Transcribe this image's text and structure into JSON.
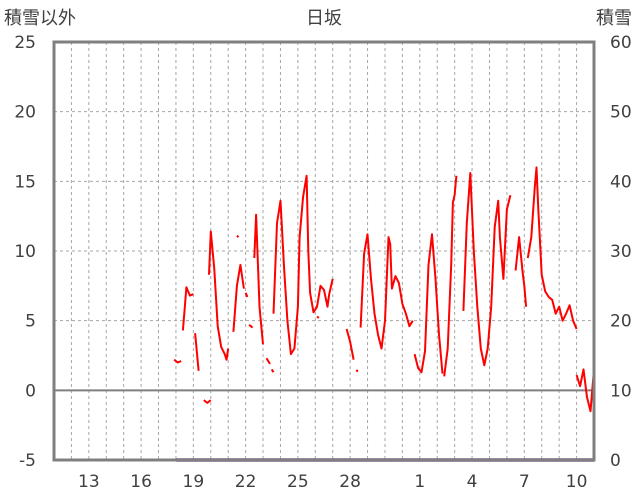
{
  "chart_data": {
    "type": "line",
    "title": "日坂",
    "left_axis_label": "積雪以外",
    "right_axis_label": "積雪",
    "left_ylim": [
      -5,
      25
    ],
    "left_yticks": [
      -5,
      0,
      5,
      10,
      15,
      20,
      25
    ],
    "right_ylim": [
      0,
      60
    ],
    "right_yticks": [
      0,
      10,
      20,
      30,
      40,
      50,
      60
    ],
    "x_day_range": [
      11.0,
      42.0
    ],
    "x_tick_days": [
      13,
      16,
      19,
      22,
      25,
      28,
      32,
      35,
      38,
      41
    ],
    "x_tick_labels": [
      "13",
      "16",
      "19",
      "22",
      "25",
      "28",
      "1",
      "4",
      "7",
      "10"
    ],
    "grid": true,
    "series": [
      {
        "axis": "left",
        "color": "#ff0000",
        "segments": [
          [
            [
              17.9,
              2.2
            ],
            [
              18.1,
              2.0
            ],
            [
              18.3,
              2.1
            ]
          ],
          [
            [
              18.4,
              4.3
            ],
            [
              18.6,
              7.4
            ],
            [
              18.8,
              6.8
            ],
            [
              19.0,
              6.9
            ]
          ],
          [
            [
              19.1,
              4.1
            ],
            [
              19.3,
              1.4
            ]
          ],
          [
            [
              19.6,
              -0.7
            ],
            [
              19.8,
              -0.9
            ],
            [
              20.0,
              -0.7
            ]
          ],
          [
            [
              19.9,
              8.3
            ],
            [
              20.0,
              11.4
            ],
            [
              20.2,
              8.7
            ],
            [
              20.4,
              4.6
            ],
            [
              20.6,
              3.1
            ],
            [
              20.8,
              2.6
            ],
            [
              20.9,
              2.2
            ],
            [
              21.0,
              3.0
            ]
          ],
          [
            [
              21.3,
              4.2
            ],
            [
              21.5,
              7.5
            ],
            [
              21.7,
              9.0
            ],
            [
              21.9,
              7.3
            ]
          ],
          [
            [
              21.5,
              11.1
            ],
            [
              21.6,
              11.0
            ]
          ],
          [
            [
              22.0,
              7.0
            ],
            [
              22.1,
              6.7
            ]
          ],
          [
            [
              22.2,
              4.7
            ],
            [
              22.4,
              4.5
            ]
          ],
          [
            [
              22.5,
              9.5
            ],
            [
              22.6,
              12.6
            ],
            [
              22.8,
              6.0
            ],
            [
              23.0,
              3.3
            ]
          ],
          [
            [
              23.2,
              2.3
            ],
            [
              23.4,
              1.9
            ]
          ],
          [
            [
              23.5,
              1.5
            ],
            [
              23.6,
              1.3
            ]
          ],
          [
            [
              23.6,
              5.5
            ],
            [
              23.8,
              12.0
            ],
            [
              24.0,
              13.6
            ],
            [
              24.2,
              9.0
            ],
            [
              24.4,
              5.0
            ],
            [
              24.6,
              2.6
            ],
            [
              24.8,
              3.0
            ],
            [
              25.0,
              6.0
            ],
            [
              25.1,
              11.0
            ],
            [
              25.3,
              13.9
            ],
            [
              25.5,
              15.4
            ],
            [
              25.6,
              10.0
            ],
            [
              25.7,
              7.0
            ],
            [
              25.9,
              5.6
            ],
            [
              26.1,
              6.0
            ],
            [
              26.3,
              7.5
            ],
            [
              26.5,
              7.2
            ],
            [
              26.7,
              6.0
            ],
            [
              26.8,
              6.9
            ],
            [
              27.0,
              8.0
            ]
          ],
          [
            [
              26.1,
              5.3
            ],
            [
              26.2,
              5.2
            ]
          ],
          [
            [
              26.6,
              6.5
            ],
            [
              26.7,
              6.4
            ]
          ],
          [
            [
              27.8,
              4.4
            ],
            [
              28.0,
              3.5
            ],
            [
              28.2,
              2.2
            ]
          ],
          [
            [
              28.4,
              1.4
            ]
          ],
          [
            [
              28.6,
              4.5
            ],
            [
              28.8,
              9.8
            ],
            [
              29.0,
              11.2
            ],
            [
              29.2,
              8.0
            ],
            [
              29.4,
              5.5
            ],
            [
              29.6,
              4.0
            ],
            [
              29.8,
              3.0
            ],
            [
              30.0,
              5.0
            ],
            [
              30.2,
              11.0
            ],
            [
              30.3,
              10.5
            ],
            [
              30.4,
              7.3
            ],
            [
              30.6,
              8.2
            ],
            [
              30.8,
              7.7
            ],
            [
              31.0,
              6.2
            ],
            [
              31.2,
              5.5
            ],
            [
              31.4,
              4.6
            ],
            [
              31.6,
              5.0
            ]
          ],
          [
            [
              31.7,
              2.6
            ],
            [
              31.9,
              1.6
            ],
            [
              32.1,
              1.3
            ],
            [
              32.3,
              2.8
            ],
            [
              32.5,
              9.0
            ],
            [
              32.7,
              11.2
            ],
            [
              32.9,
              8.0
            ],
            [
              33.1,
              4.0
            ],
            [
              33.3,
              1.2
            ]
          ],
          [
            [
              33.4,
              1.0
            ],
            [
              33.6,
              3.0
            ],
            [
              33.8,
              9.0
            ],
            [
              33.9,
              13.5
            ],
            [
              34.0,
              14.0
            ],
            [
              34.1,
              15.4
            ]
          ],
          [
            [
              34.5,
              5.7
            ],
            [
              34.7,
              12.0
            ],
            [
              34.9,
              15.6
            ],
            [
              35.1,
              10.0
            ],
            [
              35.3,
              6.0
            ],
            [
              35.5,
              3.0
            ],
            [
              35.7,
              1.8
            ],
            [
              35.9,
              3.0
            ],
            [
              36.1,
              6.0
            ],
            [
              36.3,
              11.7
            ],
            [
              36.5,
              13.6
            ],
            [
              36.6,
              11.0
            ],
            [
              36.8,
              8.0
            ],
            [
              37.0,
              13.0
            ],
            [
              37.2,
              14.0
            ]
          ],
          [
            [
              37.5,
              8.6
            ],
            [
              37.7,
              11.0
            ],
            [
              37.9,
              8.5
            ],
            [
              38.0,
              7.5
            ],
            [
              38.1,
              6.0
            ]
          ],
          [
            [
              38.2,
              9.5
            ],
            [
              38.4,
              11.0
            ],
            [
              38.6,
              14.6
            ],
            [
              38.7,
              16.0
            ],
            [
              38.8,
              13.0
            ],
            [
              39.0,
              8.3
            ],
            [
              39.2,
              7.1
            ],
            [
              39.4,
              6.7
            ],
            [
              39.6,
              6.5
            ],
            [
              39.8,
              5.5
            ],
            [
              40.0,
              6.0
            ],
            [
              40.2,
              5.0
            ],
            [
              40.4,
              5.5
            ],
            [
              40.6,
              6.1
            ],
            [
              40.8,
              5.0
            ],
            [
              41.0,
              4.4
            ]
          ],
          [
            [
              41.0,
              1.1
            ],
            [
              41.2,
              0.3
            ],
            [
              41.4,
              1.5
            ],
            [
              41.6,
              -0.5
            ],
            [
              41.8,
              -1.5
            ],
            [
              42.0,
              1.5
            ]
          ]
        ]
      },
      {
        "axis": "right",
        "color": "#7030a0",
        "segments": [
          [
            [
              18.0,
              0
            ],
            [
              42.0,
              0
            ]
          ]
        ]
      }
    ]
  }
}
